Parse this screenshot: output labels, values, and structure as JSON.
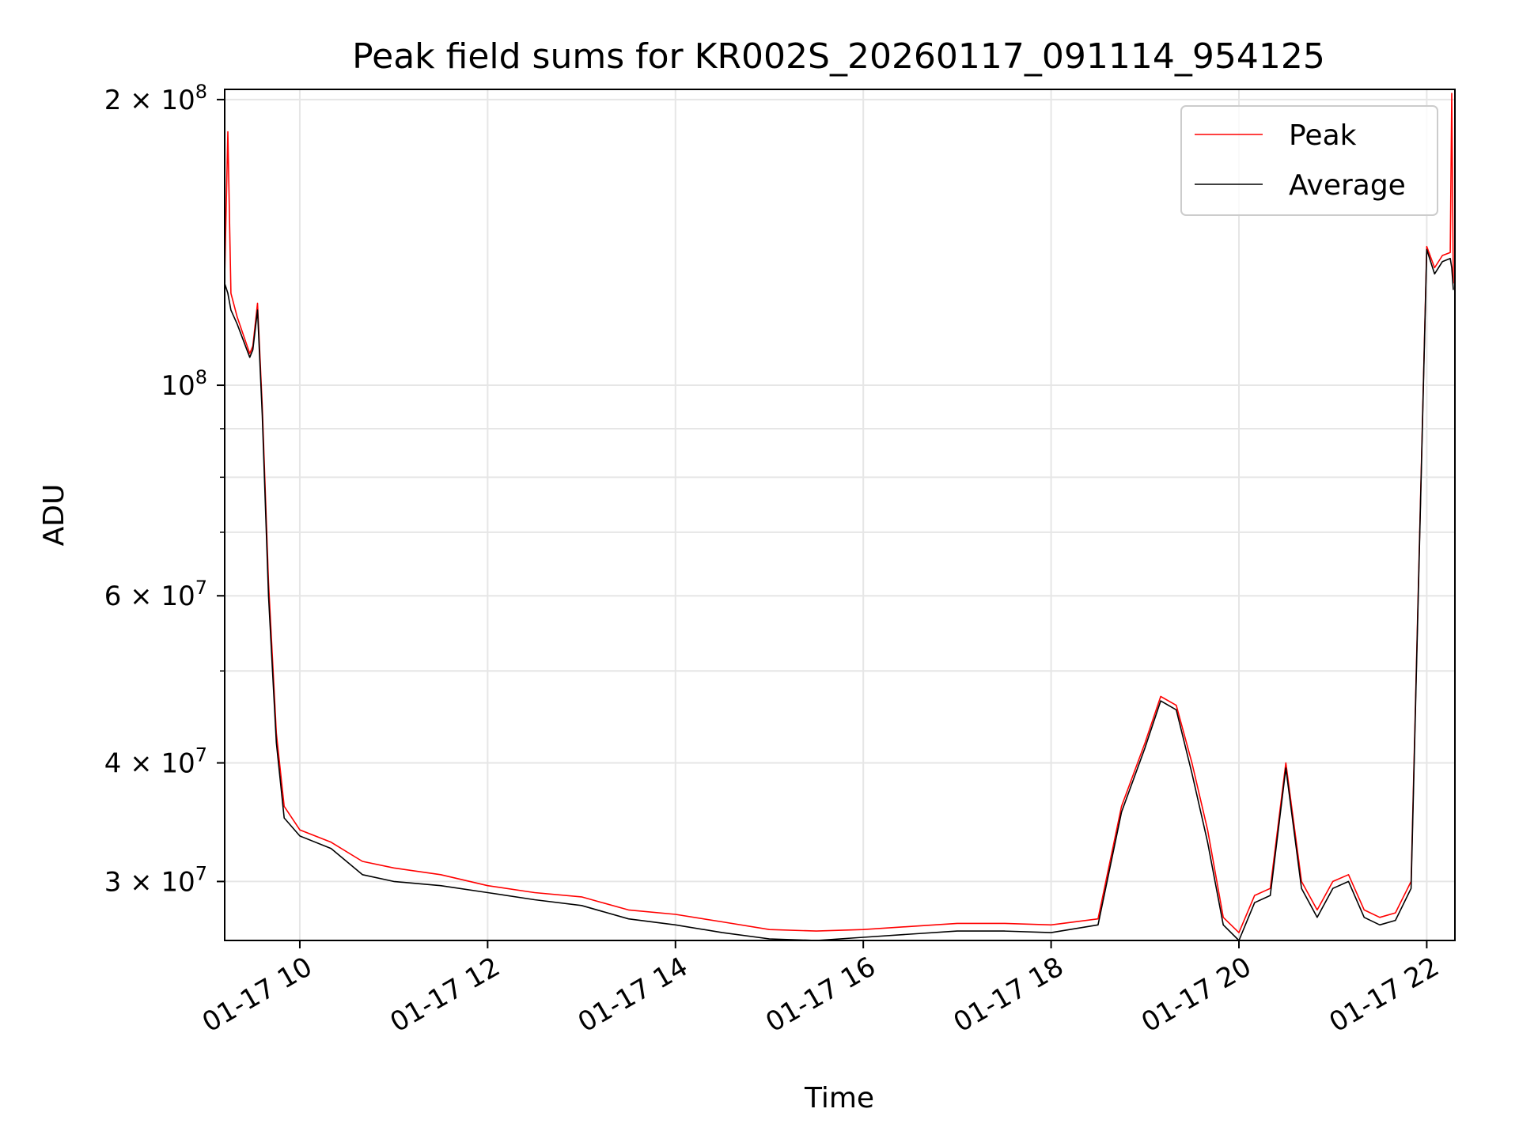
{
  "chart_data": {
    "type": "line",
    "title": "Peak field sums for KR002S_20260117_091114_954125",
    "xlabel": "Time",
    "ylabel": "ADU",
    "y_scale": "log",
    "grid": true,
    "legend_position": "top-right",
    "xlim": [
      "01-17 09:12",
      "01-17 22:18"
    ],
    "ylim": [
      26000000,
      205000000
    ],
    "x_ticks": [
      {
        "value": "01-17 10:00",
        "label": "01-17 10"
      },
      {
        "value": "01-17 12:00",
        "label": "01-17 12"
      },
      {
        "value": "01-17 14:00",
        "label": "01-17 14"
      },
      {
        "value": "01-17 16:00",
        "label": "01-17 16"
      },
      {
        "value": "01-17 18:00",
        "label": "01-17 18"
      },
      {
        "value": "01-17 20:00",
        "label": "01-17 20"
      },
      {
        "value": "01-17 22:00",
        "label": "01-17 22"
      }
    ],
    "y_major_ticks": [
      {
        "value": 30000000,
        "mant": "3",
        "exp": "7"
      },
      {
        "value": 40000000,
        "mant": "4",
        "exp": "7"
      },
      {
        "value": 60000000,
        "mant": "6",
        "exp": "7"
      },
      {
        "value": 100000000,
        "mant": "",
        "exp": "8"
      },
      {
        "value": 200000000,
        "mant": "2",
        "exp": "8"
      }
    ],
    "y_minor_ticks": [
      50000000,
      70000000,
      80000000,
      90000000
    ],
    "series": [
      {
        "name": "Peak",
        "color": "#ff0000",
        "x": [
          "01-17 09:12",
          "01-17 09:14",
          "01-17 09:16",
          "01-17 09:20",
          "01-17 09:28",
          "01-17 09:30",
          "01-17 09:33",
          "01-17 09:36",
          "01-17 09:40",
          "01-17 09:45",
          "01-17 09:50",
          "01-17 10:00",
          "01-17 10:20",
          "01-17 10:40",
          "01-17 11:00",
          "01-17 11:30",
          "01-17 12:00",
          "01-17 12:30",
          "01-17 13:00",
          "01-17 13:30",
          "01-17 14:00",
          "01-17 14:30",
          "01-17 15:00",
          "01-17 15:30",
          "01-17 16:00",
          "01-17 16:30",
          "01-17 17:00",
          "01-17 17:30",
          "01-17 18:00",
          "01-17 18:30",
          "01-17 18:45",
          "01-17 19:00",
          "01-17 19:10",
          "01-17 19:20",
          "01-17 19:30",
          "01-17 19:40",
          "01-17 19:50",
          "01-17 20:00",
          "01-17 20:10",
          "01-17 20:20",
          "01-17 20:30",
          "01-17 20:40",
          "01-17 20:50",
          "01-17 21:00",
          "01-17 21:10",
          "01-17 21:20",
          "01-17 21:30",
          "01-17 21:40",
          "01-17 21:50",
          "01-17 22:00",
          "01-17 22:05",
          "01-17 22:10",
          "01-17 22:15",
          "01-17 22:16",
          "01-17 22:17"
        ],
        "y": [
          130000000,
          185000000,
          125000000,
          118000000,
          108000000,
          110000000,
          122000000,
          95000000,
          62000000,
          43000000,
          36000000,
          34000000,
          33000000,
          31500000,
          31000000,
          30500000,
          29700000,
          29200000,
          28900000,
          28000000,
          27700000,
          27200000,
          26700000,
          26600000,
          26700000,
          26900000,
          27100000,
          27100000,
          27000000,
          27400000,
          36000000,
          42000000,
          47000000,
          46000000,
          40000000,
          34000000,
          27500000,
          26500000,
          29000000,
          29500000,
          40000000,
          30000000,
          28000000,
          30000000,
          30500000,
          28000000,
          27500000,
          27800000,
          30000000,
          140000000,
          133000000,
          137000000,
          138000000,
          203000000,
          128000000
        ]
      },
      {
        "name": "Average",
        "color": "#000000",
        "x": [
          "01-17 09:12",
          "01-17 09:14",
          "01-17 09:16",
          "01-17 09:20",
          "01-17 09:28",
          "01-17 09:30",
          "01-17 09:33",
          "01-17 09:36",
          "01-17 09:40",
          "01-17 09:45",
          "01-17 09:50",
          "01-17 10:00",
          "01-17 10:20",
          "01-17 10:40",
          "01-17 11:00",
          "01-17 11:30",
          "01-17 12:00",
          "01-17 12:30",
          "01-17 13:00",
          "01-17 13:30",
          "01-17 14:00",
          "01-17 14:30",
          "01-17 15:00",
          "01-17 15:30",
          "01-17 16:00",
          "01-17 16:30",
          "01-17 17:00",
          "01-17 17:30",
          "01-17 18:00",
          "01-17 18:30",
          "01-17 18:45",
          "01-17 19:00",
          "01-17 19:10",
          "01-17 19:20",
          "01-17 19:30",
          "01-17 19:40",
          "01-17 19:50",
          "01-17 20:00",
          "01-17 20:10",
          "01-17 20:20",
          "01-17 20:30",
          "01-17 20:40",
          "01-17 20:50",
          "01-17 21:00",
          "01-17 21:10",
          "01-17 21:20",
          "01-17 21:30",
          "01-17 21:40",
          "01-17 21:50",
          "01-17 22:00",
          "01-17 22:05",
          "01-17 22:10",
          "01-17 22:15",
          "01-17 22:16",
          "01-17 22:17"
        ],
        "y": [
          128000000,
          125000000,
          120000000,
          116000000,
          107000000,
          109000000,
          120000000,
          93000000,
          60000000,
          42000000,
          35000000,
          33500000,
          32500000,
          30500000,
          30000000,
          29700000,
          29200000,
          28700000,
          28300000,
          27400000,
          27000000,
          26500000,
          26100000,
          26000000,
          26200000,
          26400000,
          26600000,
          26600000,
          26500000,
          27000000,
          35500000,
          41500000,
          46500000,
          45500000,
          39000000,
          33000000,
          27000000,
          26000000,
          28500000,
          29000000,
          39500000,
          29500000,
          27500000,
          29500000,
          30000000,
          27500000,
          27000000,
          27300000,
          29500000,
          139000000,
          131000000,
          135000000,
          136000000,
          133000000,
          126000000
        ]
      }
    ]
  }
}
